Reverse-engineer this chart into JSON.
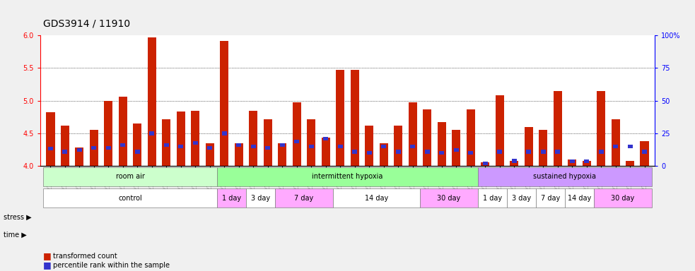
{
  "title": "GDS3914 / 11910",
  "samples": [
    "GSM215660",
    "GSM215661",
    "GSM215662",
    "GSM215663",
    "GSM215664",
    "GSM215665",
    "GSM215666",
    "GSM215667",
    "GSM215668",
    "GSM215669",
    "GSM215670",
    "GSM215671",
    "GSM215672",
    "GSM215673",
    "GSM215674",
    "GSM215675",
    "GSM215676",
    "GSM215677",
    "GSM215678",
    "GSM215679",
    "GSM215680",
    "GSM215681",
    "GSM215682",
    "GSM215683",
    "GSM215684",
    "GSM215685",
    "GSM215686",
    "GSM215687",
    "GSM215688",
    "GSM215689",
    "GSM215690",
    "GSM215691",
    "GSM215692",
    "GSM215693",
    "GSM215694",
    "GSM215695",
    "GSM215696",
    "GSM215697",
    "GSM215698",
    "GSM215699",
    "GSM215700",
    "GSM215701"
  ],
  "red_values": [
    4.82,
    4.62,
    4.28,
    4.55,
    5.0,
    5.06,
    4.65,
    5.97,
    4.72,
    4.83,
    4.85,
    4.35,
    5.91,
    4.35,
    4.84,
    4.72,
    4.35,
    4.97,
    4.72,
    4.44,
    5.47,
    5.47,
    4.62,
    4.35,
    4.62,
    4.97,
    4.87,
    4.67,
    4.55,
    4.87,
    4.06,
    5.08,
    4.08,
    4.6,
    4.55,
    5.15,
    4.1,
    4.08,
    5.15,
    4.72,
    4.08,
    4.38
  ],
  "blue_values": [
    4.27,
    4.22,
    4.25,
    4.28,
    4.28,
    4.32,
    4.22,
    4.5,
    4.32,
    4.3,
    4.35,
    4.28,
    4.5,
    4.32,
    4.3,
    4.28,
    4.32,
    4.38,
    4.3,
    4.42,
    4.3,
    4.22,
    4.2,
    4.3,
    4.22,
    4.3,
    4.22,
    4.2,
    4.25,
    4.2,
    4.04,
    4.22,
    4.08,
    4.22,
    4.22,
    4.22,
    4.07,
    4.07,
    4.22,
    4.3,
    4.3,
    4.22
  ],
  "ylim": [
    4.0,
    6.0
  ],
  "yticks_left": [
    4.0,
    4.5,
    5.0,
    5.5,
    6.0
  ],
  "yticks_right": [
    0,
    25,
    50,
    75,
    100
  ],
  "yticks_right_labels": [
    "0",
    "25",
    "50",
    "75",
    "100%"
  ],
  "grid_lines": [
    4.5,
    5.0,
    5.5
  ],
  "stress_groups": [
    {
      "label": "room air",
      "start": 0,
      "end": 12,
      "color": "#ccffcc"
    },
    {
      "label": "intermittent hypoxia",
      "start": 12,
      "end": 30,
      "color": "#99ff99"
    },
    {
      "label": "sustained hypoxia",
      "start": 30,
      "end": 42,
      "color": "#cc99ff"
    }
  ],
  "time_groups": [
    {
      "label": "control",
      "start": 0,
      "end": 12,
      "color": "#ffffff"
    },
    {
      "label": "1 day",
      "start": 12,
      "end": 14,
      "color": "#ffaaff"
    },
    {
      "label": "3 day",
      "start": 14,
      "end": 16,
      "color": "#ffffff"
    },
    {
      "label": "7 day",
      "start": 16,
      "end": 20,
      "color": "#ffaaff"
    },
    {
      "label": "14 day",
      "start": 20,
      "end": 26,
      "color": "#ffffff"
    },
    {
      "label": "30 day",
      "start": 26,
      "end": 30,
      "color": "#ffaaff"
    },
    {
      "label": "1 day",
      "start": 30,
      "end": 32,
      "color": "#ffffff"
    },
    {
      "label": "3 day",
      "start": 32,
      "end": 34,
      "color": "#ffffff"
    },
    {
      "label": "7 day",
      "start": 34,
      "end": 36,
      "color": "#ffffff"
    },
    {
      "label": "14 day",
      "start": 36,
      "end": 38,
      "color": "#ffffff"
    },
    {
      "label": "30 day",
      "start": 38,
      "end": 42,
      "color": "#ffaaff"
    }
  ],
  "bar_color": "#cc2200",
  "blue_color": "#3333cc",
  "stress_label": "stress ▶",
  "time_label": "time ▶",
  "legend_red_text": "transformed count",
  "legend_blue_text": "percentile rank within the sample"
}
